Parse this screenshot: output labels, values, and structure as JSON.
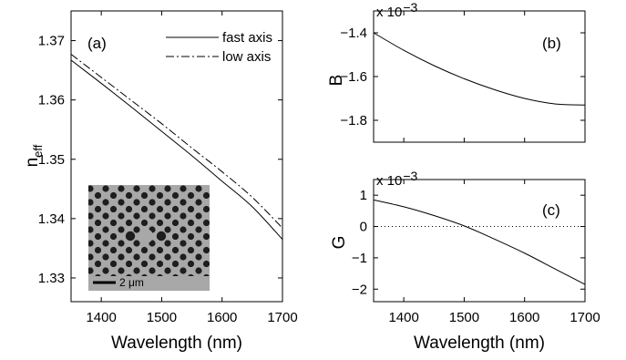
{
  "chart_data": [
    {
      "panel": "a",
      "type": "line",
      "panel_label": "(a)",
      "xlabel": "Wavelength (nm)",
      "ylabel_main": "n",
      "ylabel_sub": "eff",
      "xlim": [
        1350,
        1700
      ],
      "ylim": [
        1.326,
        1.375
      ],
      "xticks": [
        1400,
        1500,
        1600,
        1700
      ],
      "xtick_labels": [
        "1400",
        "1500",
        "1600",
        "1700"
      ],
      "yticks": [
        1.33,
        1.34,
        1.35,
        1.36,
        1.37
      ],
      "ytick_labels": [
        "1.33",
        "1.34",
        "1.35",
        "1.36",
        "1.37"
      ],
      "grid": false,
      "legend": "top-right",
      "series": [
        {
          "name": "fast axis",
          "style": "solid",
          "x": [
            1350,
            1400,
            1450,
            1500,
            1550,
            1600,
            1650,
            1700
          ],
          "y": [
            1.3667,
            1.3628,
            1.3588,
            1.3547,
            1.3506,
            1.3463,
            1.342,
            1.3365
          ]
        },
        {
          "name": "low axis",
          "style": "dashdot",
          "x": [
            1350,
            1400,
            1450,
            1500,
            1550,
            1600,
            1650,
            1700
          ],
          "y": [
            1.3677,
            1.3638,
            1.3599,
            1.356,
            1.3519,
            1.3479,
            1.3436,
            1.3384
          ]
        }
      ],
      "inset": {
        "scale_bar_label": "2 μm"
      }
    },
    {
      "panel": "b",
      "type": "line",
      "panel_label": "(b)",
      "xlabel": "",
      "ylabel": "B",
      "scale_prefix": "x 10",
      "scale_exponent": "−3",
      "xlim": [
        1350,
        1700
      ],
      "ylim": [
        -1.9,
        -1.3
      ],
      "xticks": [
        1400,
        1500,
        1600,
        1700
      ],
      "yticks": [
        -1.8,
        -1.6,
        -1.4
      ],
      "ytick_labels": [
        "−1.8",
        "−1.6",
        "−1.4"
      ],
      "grid": false,
      "series": [
        {
          "style": "solid",
          "x": [
            1350,
            1400,
            1450,
            1500,
            1550,
            1600,
            1650,
            1700
          ],
          "y": [
            -1.4,
            -1.48,
            -1.55,
            -1.61,
            -1.66,
            -1.7,
            -1.725,
            -1.73
          ]
        }
      ]
    },
    {
      "panel": "c",
      "type": "line",
      "panel_label": "(c)",
      "xlabel": "Wavelength (nm)",
      "ylabel": "G",
      "scale_prefix": "x 10",
      "scale_exponent": "−3",
      "xlim": [
        1350,
        1700
      ],
      "ylim": [
        -2.4,
        1.5
      ],
      "xticks": [
        1400,
        1500,
        1600,
        1700
      ],
      "xtick_labels": [
        "1400",
        "1500",
        "1600",
        "1700"
      ],
      "yticks": [
        -2,
        -1,
        0,
        1
      ],
      "ytick_labels": [
        "−2",
        "−1",
        "0",
        "1"
      ],
      "grid": false,
      "reference_line": {
        "y": 0,
        "style": "dotted"
      },
      "series": [
        {
          "style": "solid",
          "x": [
            1350,
            1400,
            1450,
            1500,
            1550,
            1600,
            1650,
            1700
          ],
          "y": [
            0.85,
            0.63,
            0.35,
            0.02,
            -0.4,
            -0.85,
            -1.35,
            -1.85
          ]
        }
      ]
    }
  ]
}
